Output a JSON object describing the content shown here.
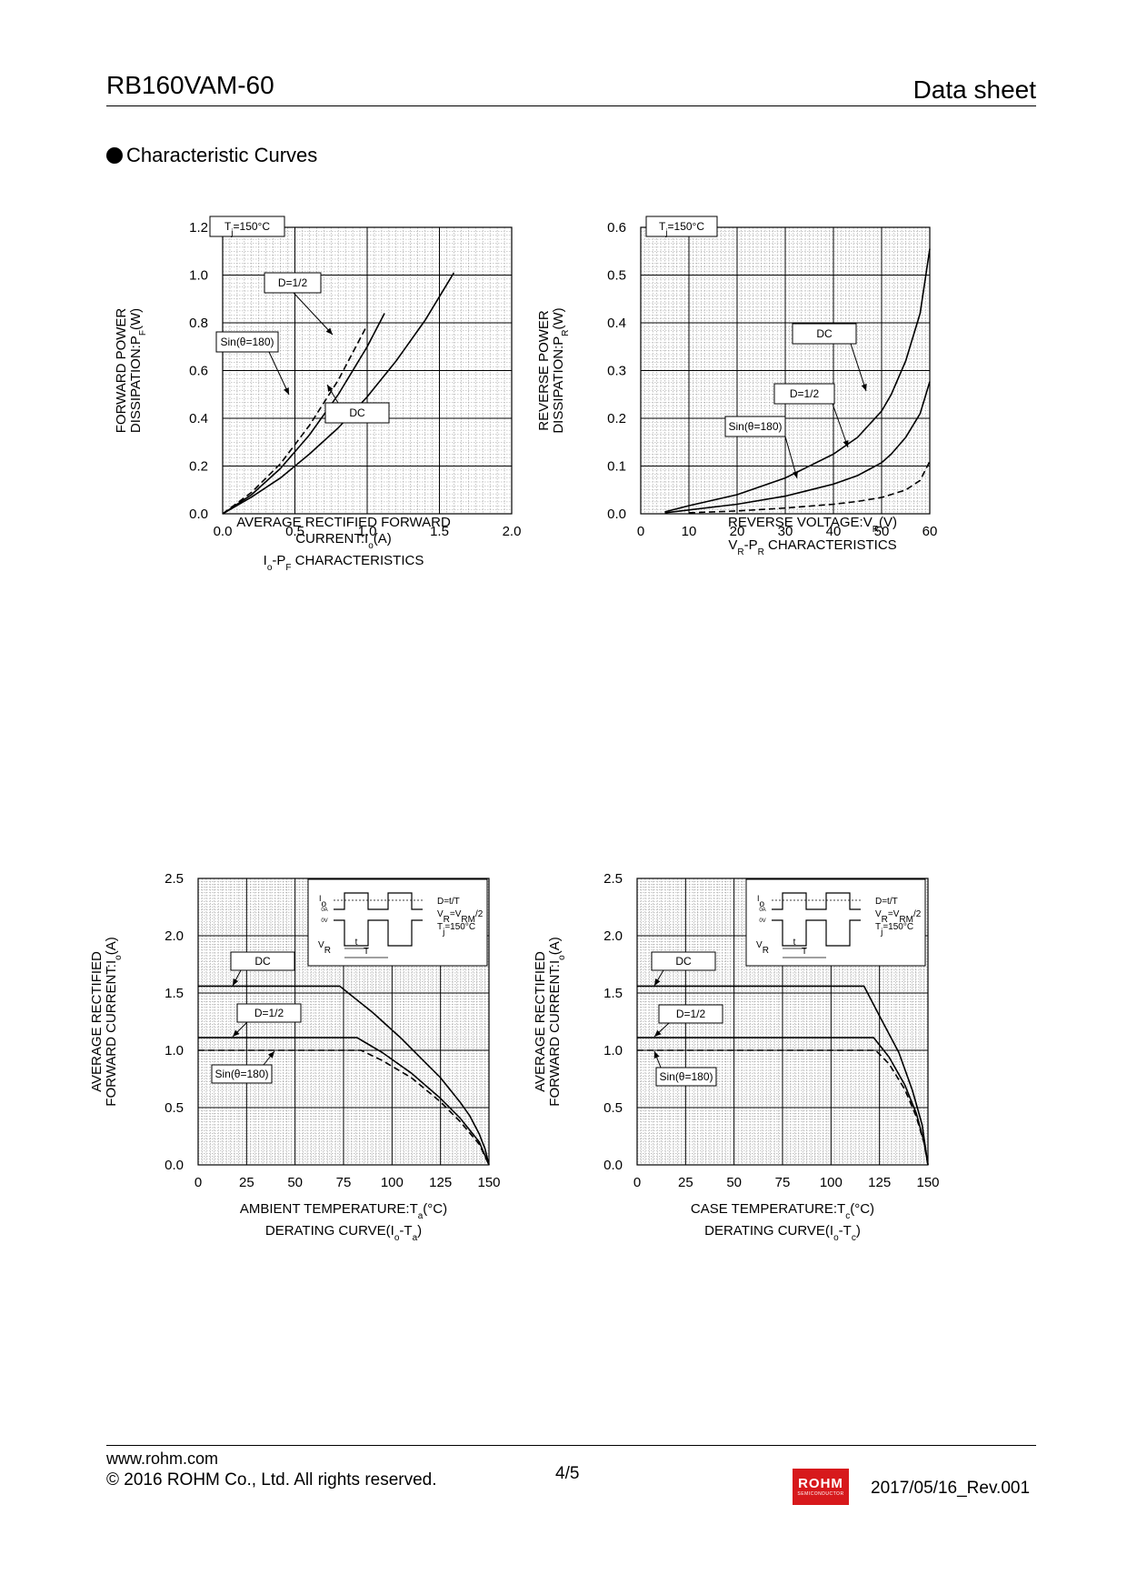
{
  "header": {
    "part_number": "RB160VAM-60",
    "doc_type": "Data sheet"
  },
  "section_title": "Characteristic Curves",
  "footer": {
    "url": "www.rohm.com",
    "copyright": "© 2016 ROHM Co., Ltd. All rights reserved.",
    "page": "4/5",
    "logo_text": "ROHM",
    "logo_subtext": "SEMICONDUCTOR",
    "revision": "2017/05/16_Rev.001"
  },
  "chart_data": [
    {
      "id": "io-pf",
      "type": "line",
      "title": "Io-PF CHARACTERISTICS",
      "xlabel": "AVERAGE RECTIFIED FORWARD CURRENT:Io(A)",
      "ylabel": "FORWARD POWER DISSIPATION:PF(W)",
      "xlim": [
        0,
        2.0
      ],
      "ylim": [
        0,
        1.2
      ],
      "xticks": [
        0,
        0.5,
        1.0,
        1.5,
        2.0
      ],
      "yticks": [
        0,
        0.2,
        0.4,
        0.6,
        0.8,
        1.0,
        1.2
      ],
      "xtick_labels": [
        "0.0",
        "0.5",
        "1.0",
        "1.5",
        "2.0"
      ],
      "ytick_labels": [
        "0.0",
        "0.2",
        "0.4",
        "0.6",
        "0.8",
        "1.0",
        "1.2"
      ],
      "grid": true,
      "series": [
        {
          "name": "DC",
          "style": "solid",
          "x": [
            0,
            0.2,
            0.4,
            0.6,
            0.8,
            1.0,
            1.2,
            1.4,
            1.6
          ],
          "y": [
            0,
            0.07,
            0.15,
            0.25,
            0.36,
            0.49,
            0.64,
            0.81,
            1.01
          ]
        },
        {
          "name": "D=1/2",
          "style": "solid",
          "x": [
            0,
            0.2,
            0.4,
            0.6,
            0.8,
            1.0,
            1.12
          ],
          "y": [
            0,
            0.08,
            0.19,
            0.33,
            0.5,
            0.7,
            0.84
          ]
        },
        {
          "name": "Sin(θ=180)",
          "style": "dashed",
          "x": [
            0,
            0.2,
            0.4,
            0.6,
            0.8,
            1.0
          ],
          "y": [
            0,
            0.09,
            0.21,
            0.37,
            0.56,
            0.79
          ]
        }
      ],
      "annotations": [
        {
          "text": "Tj=150°C"
        },
        {
          "text": "D=1/2"
        },
        {
          "text": "Sin(θ=180)"
        },
        {
          "text": "DC"
        }
      ]
    },
    {
      "id": "vr-pr",
      "type": "line",
      "title": "VR-PR CHARACTERISTICS",
      "xlabel": "REVERSE VOLTAGE:VR(V)",
      "ylabel": "REVERSE POWER DISSIPATION:PR(W)",
      "xlim": [
        0,
        60
      ],
      "ylim": [
        0,
        0.6
      ],
      "xticks": [
        0,
        10,
        20,
        30,
        40,
        50,
        60
      ],
      "yticks": [
        0,
        0.1,
        0.2,
        0.3,
        0.4,
        0.5,
        0.6
      ],
      "xtick_labels": [
        "0",
        "10",
        "20",
        "30",
        "40",
        "50",
        "60"
      ],
      "ytick_labels": [
        "0.0",
        "0.1",
        "0.2",
        "0.3",
        "0.4",
        "0.5",
        "0.6"
      ],
      "grid": true,
      "series": [
        {
          "name": "DC",
          "style": "solid",
          "x": [
            5,
            10,
            20,
            30,
            40,
            45,
            50,
            52,
            55,
            58,
            60
          ],
          "y": [
            0.004,
            0.017,
            0.04,
            0.075,
            0.125,
            0.16,
            0.215,
            0.25,
            0.32,
            0.42,
            0.555
          ]
        },
        {
          "name": "D=1/2",
          "style": "solid",
          "x": [
            5,
            10,
            20,
            30,
            40,
            45,
            50,
            52,
            55,
            58,
            60
          ],
          "y": [
            0.002,
            0.008,
            0.02,
            0.037,
            0.062,
            0.08,
            0.107,
            0.125,
            0.16,
            0.21,
            0.277
          ]
        },
        {
          "name": "Sin(θ=180)",
          "style": "dashed",
          "x": [
            10,
            20,
            30,
            40,
            45,
            50,
            55,
            58,
            60
          ],
          "y": [
            0.002,
            0.006,
            0.012,
            0.02,
            0.026,
            0.034,
            0.05,
            0.07,
            0.11
          ]
        }
      ],
      "annotations": [
        {
          "text": "Tj=150°C"
        },
        {
          "text": "DC"
        },
        {
          "text": "D=1/2"
        },
        {
          "text": "Sin(θ=180)"
        }
      ]
    },
    {
      "id": "derating-ta",
      "type": "line",
      "title": "DERATING CURVE(Io-Ta)",
      "xlabel": "AMBIENT TEMPERATURE:Ta(°C)",
      "ylabel": "AVERAGE RECTIFIED FORWARD CURRENT:Io(A)",
      "xlim": [
        0,
        150
      ],
      "ylim": [
        0,
        2.5
      ],
      "xticks": [
        0,
        25,
        50,
        75,
        100,
        125,
        150
      ],
      "yticks": [
        0,
        0.5,
        1.0,
        1.5,
        2.0,
        2.5
      ],
      "xtick_labels": [
        "0",
        "25",
        "50",
        "75",
        "100",
        "125",
        "150"
      ],
      "ytick_labels": [
        "0.0",
        "0.5",
        "1.0",
        "1.5",
        "2.0",
        "2.5"
      ],
      "grid": true,
      "series": [
        {
          "name": "DC",
          "style": "solid",
          "x": [
            0,
            73,
            90,
            105,
            115,
            125,
            135,
            140,
            145,
            148,
            150
          ],
          "y": [
            1.56,
            1.56,
            1.33,
            1.1,
            0.93,
            0.76,
            0.55,
            0.43,
            0.27,
            0.14,
            0
          ]
        },
        {
          "name": "D=1/2",
          "style": "solid",
          "x": [
            0,
            82,
            95,
            110,
            125,
            135,
            145,
            150
          ],
          "y": [
            1.11,
            1.11,
            0.98,
            0.8,
            0.58,
            0.41,
            0.2,
            0
          ]
        },
        {
          "name": "Sin(θ=180)",
          "style": "dashed",
          "x": [
            0,
            84,
            95,
            110,
            125,
            135,
            145,
            150
          ],
          "y": [
            1.0,
            1.0,
            0.91,
            0.76,
            0.55,
            0.38,
            0.18,
            0
          ]
        }
      ],
      "annotations": [
        {
          "text": "DC"
        },
        {
          "text": "D=1/2"
        },
        {
          "text": "Sin(θ=180)"
        }
      ],
      "inset": {
        "io": "Io",
        "zero_a": "0A",
        "zero_v": "0V",
        "vr": "VR",
        "t": "t",
        "T": "T",
        "line1": "D=t/T",
        "line2": "VR=VRM/2",
        "line3": "Tj=150°C"
      }
    },
    {
      "id": "derating-tc",
      "type": "line",
      "title": "DERATING CURVE(Io-Tc)",
      "xlabel": "CASE TEMPERATURE:Tc(°C)",
      "ylabel": "AVERAGE RECTIFIED FORWARD CURRENT:Io(A)",
      "xlim": [
        0,
        150
      ],
      "ylim": [
        0,
        2.5
      ],
      "xticks": [
        0,
        25,
        50,
        75,
        100,
        125,
        150
      ],
      "yticks": [
        0,
        0.5,
        1.0,
        1.5,
        2.0,
        2.5
      ],
      "xtick_labels": [
        "0",
        "25",
        "50",
        "75",
        "100",
        "125",
        "150"
      ],
      "ytick_labels": [
        "0.0",
        "0.5",
        "1.0",
        "1.5",
        "2.0",
        "2.5"
      ],
      "grid": true,
      "series": [
        {
          "name": "DC",
          "style": "solid",
          "x": [
            0,
            117,
            125,
            135,
            142,
            147,
            150
          ],
          "y": [
            1.56,
            1.56,
            1.3,
            0.98,
            0.65,
            0.35,
            0
          ]
        },
        {
          "name": "D=1/2",
          "style": "solid",
          "x": [
            0,
            122,
            130,
            138,
            144,
            148,
            150
          ],
          "y": [
            1.11,
            1.11,
            0.94,
            0.7,
            0.45,
            0.2,
            0
          ]
        },
        {
          "name": "Sin(θ=180)",
          "style": "dashed",
          "x": [
            0,
            123,
            130,
            138,
            144,
            148,
            150
          ],
          "y": [
            1.0,
            1.0,
            0.88,
            0.66,
            0.42,
            0.19,
            0
          ]
        }
      ],
      "annotations": [
        {
          "text": "DC"
        },
        {
          "text": "D=1/2"
        },
        {
          "text": "Sin(θ=180)"
        }
      ],
      "inset": {
        "io": "Io",
        "zero_a": "0A",
        "zero_v": "0V",
        "vr": "VR",
        "t": "t",
        "T": "T",
        "line1": "D=t/T",
        "line2": "VR=VRM/2",
        "line3": "Tj=150°C"
      }
    }
  ]
}
